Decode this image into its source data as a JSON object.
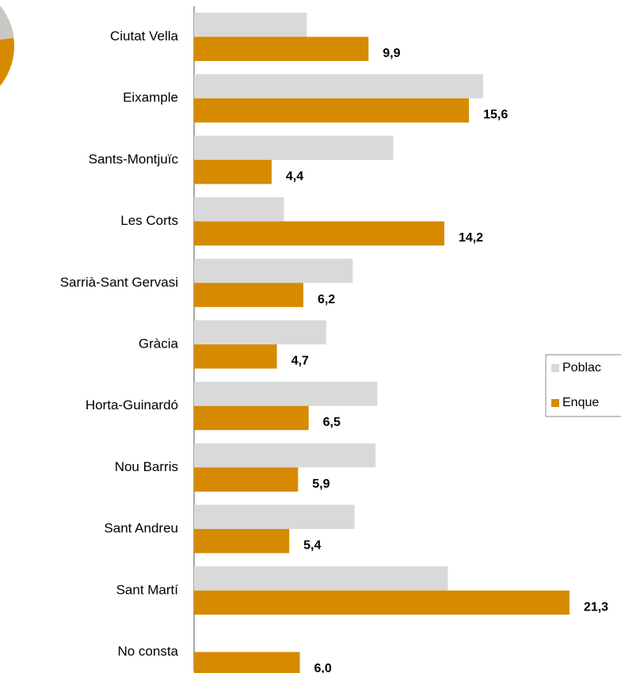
{
  "chart_data": {
    "type": "hbar",
    "categories": [
      "Ciutat Vella",
      "Eixample",
      "Sants-Montjuïc",
      "Les Corts",
      "Sarrià-Sant Gervasi",
      "Gràcia",
      "Horta-Guinardó",
      "Nou Barris",
      "Sant Andreu",
      "Sant Martí",
      "No consta"
    ],
    "series": [
      {
        "name": "Poblac",
        "color": "#d9d9d9",
        "values": [
          6.4,
          16.4,
          11.3,
          5.1,
          9.0,
          7.5,
          10.4,
          10.3,
          9.1,
          14.4,
          null
        ]
      },
      {
        "name": "Enque",
        "color": "#d68a00",
        "values": [
          9.9,
          15.6,
          4.4,
          14.2,
          6.2,
          4.7,
          6.5,
          5.9,
          5.4,
          21.3,
          6.0
        ],
        "value_labels": [
          "9,9",
          "15,6",
          "4,4",
          "14,2",
          "6,2",
          "4,7",
          "6,5",
          "5,9",
          "5,4",
          "21,3",
          "6,0"
        ]
      }
    ],
    "xlim": [
      0,
      24
    ],
    "legend": "right"
  }
}
